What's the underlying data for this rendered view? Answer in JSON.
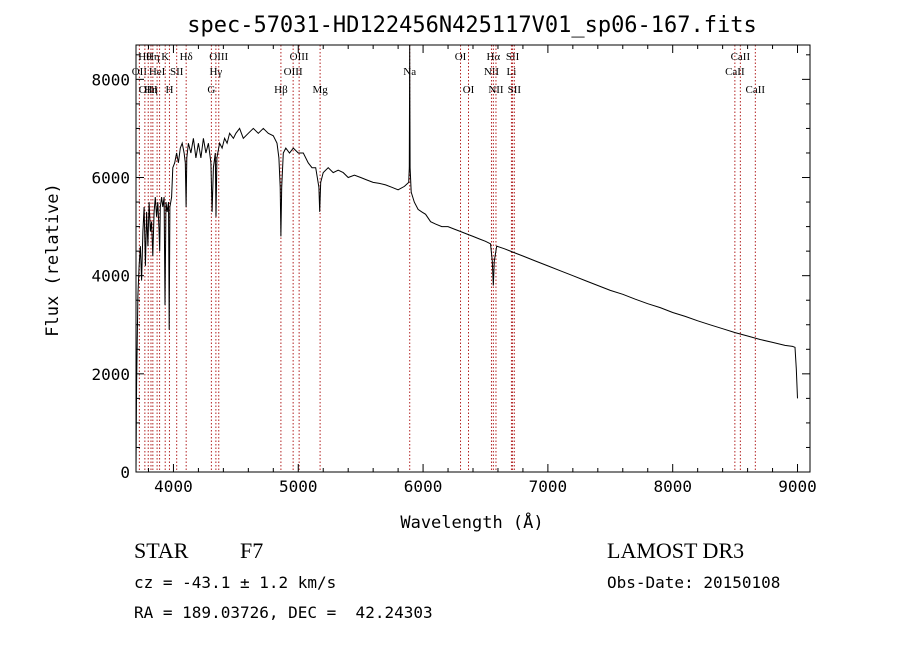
{
  "chart_data": {
    "type": "line",
    "title": "spec-57031-HD122456N425117V01_sp06-167.fits",
    "xlabel": "Wavelength (Å)",
    "ylabel": "Flux (relative)",
    "xlim": [
      3700,
      9100
    ],
    "ylim": [
      0,
      8700
    ],
    "x_ticks": [
      4000,
      5000,
      6000,
      7000,
      8000,
      9000
    ],
    "y_ticks": [
      0,
      2000,
      4000,
      6000,
      8000
    ],
    "x_tick_labels": [
      "4000",
      "5000",
      "6000",
      "7000",
      "8000",
      "9000"
    ],
    "y_tick_labels": [
      "0",
      "2000",
      "4000",
      "6000",
      "8000"
    ],
    "series": [
      {
        "name": "flux",
        "points": [
          [
            3700,
            0
          ],
          [
            3705,
            1800
          ],
          [
            3715,
            3600
          ],
          [
            3725,
            4200
          ],
          [
            3735,
            4600
          ],
          [
            3745,
            3900
          ],
          [
            3755,
            4900
          ],
          [
            3765,
            5400
          ],
          [
            3775,
            4200
          ],
          [
            3785,
            5300
          ],
          [
            3795,
            4600
          ],
          [
            3805,
            5500
          ],
          [
            3815,
            4900
          ],
          [
            3825,
            5100
          ],
          [
            3835,
            4400
          ],
          [
            3845,
            5300
          ],
          [
            3855,
            5600
          ],
          [
            3865,
            5200
          ],
          [
            3875,
            5500
          ],
          [
            3885,
            4900
          ],
          [
            3890,
            4500
          ],
          [
            3895,
            5400
          ],
          [
            3905,
            5600
          ],
          [
            3915,
            5400
          ],
          [
            3925,
            5600
          ],
          [
            3932,
            3400
          ],
          [
            3940,
            5500
          ],
          [
            3950,
            5300
          ],
          [
            3960,
            5500
          ],
          [
            3966,
            2900
          ],
          [
            3972,
            5400
          ],
          [
            3985,
            5600
          ],
          [
            3995,
            6200
          ],
          [
            4010,
            6300
          ],
          [
            4025,
            6500
          ],
          [
            4040,
            6300
          ],
          [
            4055,
            6600
          ],
          [
            4070,
            6700
          ],
          [
            4085,
            6500
          ],
          [
            4095,
            6300
          ],
          [
            4101,
            5400
          ],
          [
            4107,
            6400
          ],
          [
            4120,
            6700
          ],
          [
            4140,
            6500
          ],
          [
            4160,
            6800
          ],
          [
            4180,
            6400
          ],
          [
            4200,
            6700
          ],
          [
            4220,
            6400
          ],
          [
            4240,
            6800
          ],
          [
            4260,
            6500
          ],
          [
            4280,
            6700
          ],
          [
            4300,
            6300
          ],
          [
            4310,
            5300
          ],
          [
            4320,
            6200
          ],
          [
            4335,
            6500
          ],
          [
            4341,
            5200
          ],
          [
            4348,
            6400
          ],
          [
            4370,
            6700
          ],
          [
            4390,
            6600
          ],
          [
            4410,
            6800
          ],
          [
            4430,
            6700
          ],
          [
            4450,
            6900
          ],
          [
            4480,
            6800
          ],
          [
            4500,
            6900
          ],
          [
            4530,
            7000
          ],
          [
            4560,
            6800
          ],
          [
            4600,
            6900
          ],
          [
            4640,
            7000
          ],
          [
            4680,
            6900
          ],
          [
            4720,
            7000
          ],
          [
            4760,
            6900
          ],
          [
            4800,
            6850
          ],
          [
            4830,
            6700
          ],
          [
            4845,
            6400
          ],
          [
            4855,
            5800
          ],
          [
            4861,
            4800
          ],
          [
            4867,
            5800
          ],
          [
            4880,
            6500
          ],
          [
            4900,
            6600
          ],
          [
            4930,
            6500
          ],
          [
            4960,
            6600
          ],
          [
            5000,
            6500
          ],
          [
            5040,
            6500
          ],
          [
            5080,
            6300
          ],
          [
            5110,
            6200
          ],
          [
            5140,
            6200
          ],
          [
            5165,
            5800
          ],
          [
            5172,
            5300
          ],
          [
            5180,
            5900
          ],
          [
            5200,
            6100
          ],
          [
            5240,
            6200
          ],
          [
            5280,
            6100
          ],
          [
            5320,
            6150
          ],
          [
            5360,
            6100
          ],
          [
            5400,
            6000
          ],
          [
            5450,
            6050
          ],
          [
            5500,
            6000
          ],
          [
            5550,
            5950
          ],
          [
            5600,
            5900
          ],
          [
            5650,
            5880
          ],
          [
            5700,
            5850
          ],
          [
            5750,
            5800
          ],
          [
            5800,
            5750
          ],
          [
            5850,
            5820
          ],
          [
            5885,
            5900
          ],
          [
            5890,
            6200
          ],
          [
            5893,
            8700
          ],
          [
            5896,
            6200
          ],
          [
            5905,
            5700
          ],
          [
            5930,
            5500
          ],
          [
            5960,
            5350
          ],
          [
            5990,
            5300
          ],
          [
            6020,
            5250
          ],
          [
            6060,
            5100
          ],
          [
            6100,
            5050
          ],
          [
            6150,
            5000
          ],
          [
            6200,
            5000
          ],
          [
            6250,
            4950
          ],
          [
            6300,
            4900
          ],
          [
            6350,
            4850
          ],
          [
            6400,
            4800
          ],
          [
            6450,
            4750
          ],
          [
            6500,
            4700
          ],
          [
            6540,
            4650
          ],
          [
            6555,
            4300
          ],
          [
            6563,
            3800
          ],
          [
            6571,
            4300
          ],
          [
            6590,
            4600
          ],
          [
            6650,
            4550
          ],
          [
            6700,
            4500
          ],
          [
            6750,
            4450
          ],
          [
            6800,
            4400
          ],
          [
            6900,
            4300
          ],
          [
            7000,
            4200
          ],
          [
            7100,
            4100
          ],
          [
            7200,
            4000
          ],
          [
            7300,
            3900
          ],
          [
            7400,
            3800
          ],
          [
            7500,
            3700
          ],
          [
            7600,
            3620
          ],
          [
            7700,
            3520
          ],
          [
            7800,
            3430
          ],
          [
            7900,
            3350
          ],
          [
            8000,
            3250
          ],
          [
            8100,
            3170
          ],
          [
            8200,
            3080
          ],
          [
            8300,
            3000
          ],
          [
            8400,
            2920
          ],
          [
            8500,
            2840
          ],
          [
            8600,
            2770
          ],
          [
            8700,
            2700
          ],
          [
            8800,
            2640
          ],
          [
            8900,
            2580
          ],
          [
            8960,
            2560
          ],
          [
            8980,
            2540
          ],
          [
            8990,
            2100
          ],
          [
            9000,
            1500
          ]
        ]
      }
    ],
    "line_markers": [
      {
        "wl": 3727,
        "label": "OII",
        "row": 2
      },
      {
        "wl": 3771,
        "label": "Hθ",
        "row": 1
      },
      {
        "wl": 3798,
        "label": "OIII",
        "row": 3
      },
      {
        "wl": 3820,
        "label": "Hη",
        "row": 3
      },
      {
        "wl": 3835,
        "label": "Hη",
        "row": 1
      },
      {
        "wl": 3869,
        "label": "HeI",
        "row": 2
      },
      {
        "wl": 3889,
        "label": "",
        "row": 0
      },
      {
        "wl": 3934,
        "label": "K",
        "row": 1
      },
      {
        "wl": 3968,
        "label": "H",
        "row": 3
      },
      {
        "wl": 4026,
        "label": "SII",
        "row": 2
      },
      {
        "wl": 4102,
        "label": "Hδ",
        "row": 1
      },
      {
        "wl": 4304,
        "label": "G",
        "row": 3
      },
      {
        "wl": 4340,
        "label": "Hγ",
        "row": 2
      },
      {
        "wl": 4363,
        "label": "OIII",
        "row": 1
      },
      {
        "wl": 4861,
        "label": "Hβ",
        "row": 3
      },
      {
        "wl": 4959,
        "label": "OIII",
        "row": 2
      },
      {
        "wl": 5007,
        "label": "OIII",
        "row": 1
      },
      {
        "wl": 5175,
        "label": "Mg",
        "row": 3
      },
      {
        "wl": 5893,
        "label": "Na",
        "row": 2
      },
      {
        "wl": 6300,
        "label": "OI",
        "row": 1
      },
      {
        "wl": 6364,
        "label": "OI",
        "row": 3
      },
      {
        "wl": 6548,
        "label": "NII",
        "row": 2
      },
      {
        "wl": 6563,
        "label": "Hα",
        "row": 1
      },
      {
        "wl": 6584,
        "label": "NII",
        "row": 3
      },
      {
        "wl": 6708,
        "label": "Li",
        "row": 2
      },
      {
        "wl": 6717,
        "label": "SII",
        "row": 1
      },
      {
        "wl": 6731,
        "label": "SII",
        "row": 3
      },
      {
        "wl": 8498,
        "label": "CaII",
        "row": 2
      },
      {
        "wl": 8542,
        "label": "CaII",
        "row": 1
      },
      {
        "wl": 8662,
        "label": "CaII",
        "row": 3
      }
    ]
  },
  "info": {
    "class_label": "STAR",
    "subclass": "F7",
    "survey": "LAMOST DR3",
    "cz": "cz = -43.1 ± 1.2 km/s",
    "obs_date": "Obs-Date: 20150108",
    "coords": "RA = 189.03726, DEC =  42.24303"
  },
  "colors": {
    "axis": "#000000",
    "spectrum": "#000000",
    "marker_line": "#b22222"
  }
}
